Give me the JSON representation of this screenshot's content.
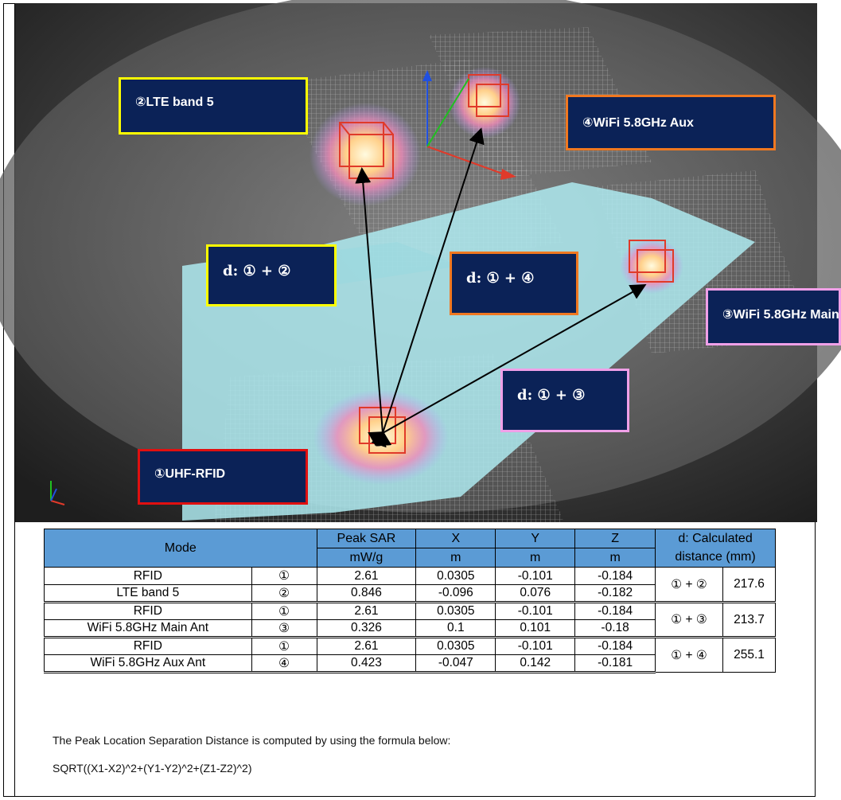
{
  "labels": {
    "lte": "②LTE band 5",
    "wifi_aux": "④WiFi 5.8GHz Aux",
    "wifi_main": "③WiFi 5.8GHz Main",
    "rfid": "①UHF-RFID",
    "d12": "d: ① + ②",
    "d14": "d: ① + ④",
    "d13": "d: ① + ③"
  },
  "colors": {
    "box_fill": "#0b2257",
    "yellow_border": "#ffff00",
    "orange_border": "#f07820",
    "pink_border": "#f0a0e8",
    "red_border": "#e01010",
    "header_fill": "#5b9bd5"
  },
  "table": {
    "headers": {
      "mode": "Mode",
      "peak_sar": "Peak SAR",
      "x": "X",
      "y": "Y",
      "z": "Z",
      "distance": "d: Calculated distance (mm)",
      "unit_sar": "mW/g",
      "unit_x": "m",
      "unit_y": "m",
      "unit_z": "m"
    },
    "groups": [
      {
        "pair": "① + ②",
        "distance": "217.6",
        "rows": [
          {
            "mode": "RFID",
            "idx": "①",
            "sar": "2.61",
            "x": "0.0305",
            "y": "-0.101",
            "z": "-0.184"
          },
          {
            "mode": "LTE band 5",
            "idx": "②",
            "sar": "0.846",
            "x": "-0.096",
            "y": "0.076",
            "z": "-0.182"
          }
        ]
      },
      {
        "pair": "① + ③",
        "distance": "213.7",
        "rows": [
          {
            "mode": "RFID",
            "idx": "①",
            "sar": "2.61",
            "x": "0.0305",
            "y": "-0.101",
            "z": "-0.184"
          },
          {
            "mode": "WiFi 5.8GHz Main Ant",
            "idx": "③",
            "sar": "0.326",
            "x": "0.1",
            "y": "0.101",
            "z": "-0.18"
          }
        ]
      },
      {
        "pair": "① + ④",
        "distance": "255.1",
        "rows": [
          {
            "mode": "RFID",
            "idx": "①",
            "sar": "2.61",
            "x": "0.0305",
            "y": "-0.101",
            "z": "-0.184"
          },
          {
            "mode": "WiFi 5.8GHz Aux Ant",
            "idx": "④",
            "sar": "0.423",
            "x": "-0.047",
            "y": "0.142",
            "z": "-0.181"
          }
        ]
      }
    ]
  },
  "note": {
    "line1": "The Peak Location Separation Distance is computed by using the formula below:",
    "line2": "SQRT((X1-X2)^2+(Y1-Y2)^2+(Z1-Z2)^2)"
  }
}
